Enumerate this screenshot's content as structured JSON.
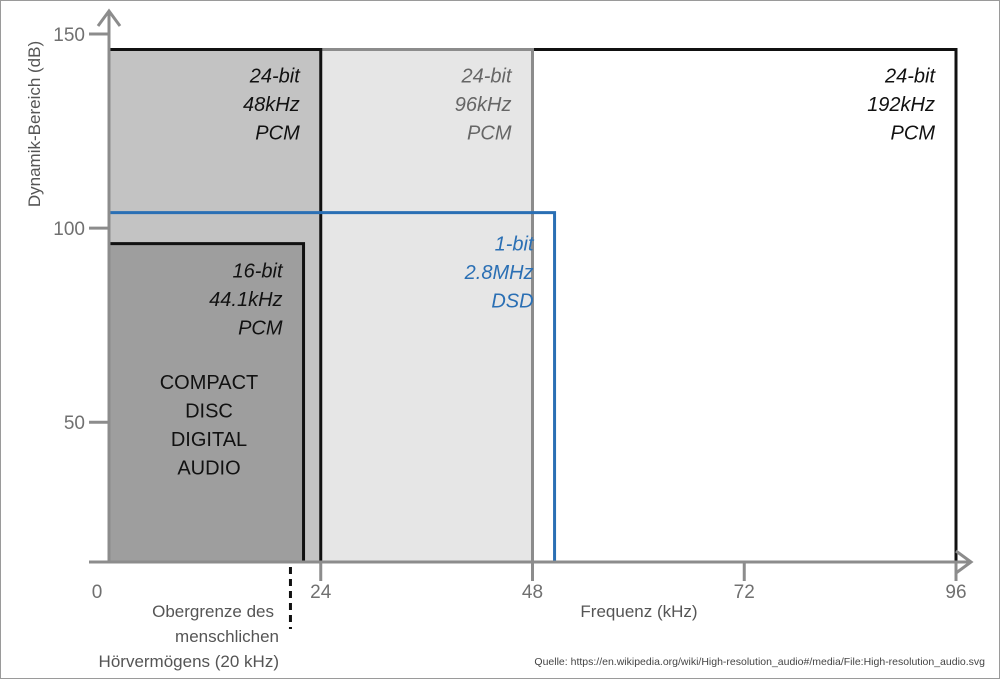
{
  "chart_data": {
    "type": "area",
    "xlabel": "Frequenz (kHz)",
    "ylabel": "Dynamik-Bereich (dB)",
    "xlim": [
      0,
      96
    ],
    "ylim": [
      14,
      150
    ],
    "xticks": [
      "0",
      "24",
      "48",
      "72",
      "96"
    ],
    "xtick_values": [
      0,
      24,
      48,
      72,
      96
    ],
    "yticks": [
      "50",
      "100",
      "150"
    ],
    "ytick_values": [
      50,
      100,
      150
    ],
    "series": [
      {
        "name": "24-bit 192kHz PCM",
        "lines": [
          "24-bit",
          "192kHz",
          "PCM"
        ],
        "x_max": 96,
        "y_max": 146,
        "fill": "#ffffff",
        "stroke": "#111111",
        "text_color": "#111111"
      },
      {
        "name": "24-bit 96kHz PCM",
        "lines": [
          "24-bit",
          "96kHz",
          "PCM"
        ],
        "x_max": 48,
        "y_max": 146,
        "fill": "#e6e6e6",
        "stroke": "#8c8c8c",
        "text_color": "#666666"
      },
      {
        "name": "24-bit 48kHz PCM",
        "lines": [
          "24-bit",
          "48kHz",
          "PCM"
        ],
        "x_max": 24,
        "y_max": 146,
        "fill": "#c3c3c3",
        "stroke": "#111111",
        "text_color": "#111111"
      },
      {
        "name": "16-bit 44.1kHz PCM",
        "lines": [
          "16-bit",
          "44.1kHz",
          "PCM"
        ],
        "x_max": 22.05,
        "y_max": 96,
        "fill": "#9e9e9e",
        "stroke": "#111111",
        "text_color": "#111111"
      },
      {
        "name": "1-bit 2.8MHz DSD",
        "lines": [
          "1-bit",
          "2.8MHz",
          "DSD"
        ],
        "x_max": 50.5,
        "y_max": 104,
        "fill": "none",
        "stroke": "#2a6fb4",
        "text_color": "#2a6fb4"
      }
    ],
    "annotations": [
      {
        "id": "cd",
        "lines": [
          "COMPACT",
          "DISC",
          "DIGITAL",
          "AUDIO"
        ]
      },
      {
        "id": "hearing-limit",
        "x": 20,
        "lines": [
          "Obergrenze des",
          "menschlichen",
          "Hörvermögens (20 kHz)"
        ]
      }
    ]
  },
  "source": "Quelle: https://en.wikipedia.org/wiki/High-resolution_audio#/media/File:High-resolution_audio.svg",
  "colors": {
    "axis": "#8c8c8c",
    "tick_text": "#707070",
    "label_text": "#555555",
    "dsd": "#2a6fb4"
  }
}
